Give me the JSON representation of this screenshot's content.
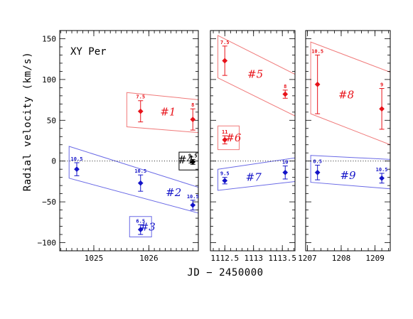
{
  "chart_data": {
    "type": "scatter",
    "title": "XY Per",
    "ylabel": "Radial velocity (km/s)",
    "xlabel": "JD − 2450000",
    "ylim": [
      -110,
      160
    ],
    "y_ticks": [
      -100,
      -50,
      0,
      50,
      100,
      150
    ],
    "zero_line": true,
    "colors": {
      "red": "#e8131a",
      "blue": "#1414c8",
      "black": "#000000",
      "red_box": "#f07a7a",
      "blue_box": "#6a6ae6"
    },
    "panels": [
      {
        "xlim": [
          1024.38,
          1026.9
        ],
        "x_ticks": [
          {
            "v": 1025,
            "label": "1025"
          },
          {
            "v": 1026,
            "label": "1026"
          }
        ],
        "x_minor_step": 0.1
      },
      {
        "xlim": [
          1112.25,
          1113.72
        ],
        "x_ticks": [
          {
            "v": 1112.5,
            "label": "1112.5"
          },
          {
            "v": 1113,
            "label": "1113"
          },
          {
            "v": 1113.5,
            "label": "1113.5"
          }
        ],
        "x_minor_step": 0.1
      },
      {
        "xlim": [
          1206.95,
          1209.45
        ],
        "x_ticks": [
          {
            "v": 1207,
            "label": "1207"
          },
          {
            "v": 1208,
            "label": "1208"
          },
          {
            "v": 1209,
            "label": "1209"
          }
        ],
        "x_minor_step": 0.2
      }
    ],
    "points": [
      {
        "panel": 0,
        "x": 1024.69,
        "y": -10,
        "err": 8,
        "snr": "10.5",
        "color": "blue"
      },
      {
        "panel": 0,
        "x": 1025.85,
        "y": -27,
        "err": 10,
        "snr": "10.5",
        "color": "blue"
      },
      {
        "panel": 0,
        "x": 1026.8,
        "y": -54,
        "err": 6,
        "snr": "10.5",
        "color": "blue"
      },
      {
        "panel": 0,
        "x": 1025.85,
        "y": -84,
        "err": 6,
        "snr": "6.5",
        "color": "blue"
      },
      {
        "panel": 0,
        "x": 1025.85,
        "y": 61,
        "err": 13,
        "snr": "7.5",
        "color": "red"
      },
      {
        "panel": 0,
        "x": 1026.8,
        "y": 51,
        "err": 13,
        "snr": "8",
        "color": "red"
      },
      {
        "panel": 0,
        "x": 1026.8,
        "y": -1,
        "err": 3,
        "snr": "9.5",
        "color": "black"
      },
      {
        "panel": 1,
        "x": 1112.5,
        "y": 123,
        "err": 18,
        "snr": "7.5",
        "color": "red"
      },
      {
        "panel": 1,
        "x": 1113.55,
        "y": 82,
        "err": 5,
        "snr": "8",
        "color": "red"
      },
      {
        "panel": 1,
        "x": 1112.5,
        "y": 26,
        "err": 5,
        "snr": "11",
        "color": "red"
      },
      {
        "panel": 1,
        "x": 1112.5,
        "y": -24,
        "err": 4,
        "snr": "9.5",
        "color": "blue"
      },
      {
        "panel": 1,
        "x": 1113.55,
        "y": -14,
        "err": 8,
        "snr": "10",
        "color": "blue"
      },
      {
        "panel": 2,
        "x": 1207.3,
        "y": 94,
        "err": 36,
        "snr": "10.5",
        "color": "red"
      },
      {
        "panel": 2,
        "x": 1209.2,
        "y": 64,
        "err": 25,
        "snr": "9",
        "color": "red"
      },
      {
        "panel": 2,
        "x": 1207.3,
        "y": -14,
        "err": 9,
        "snr": "8.5",
        "color": "blue"
      },
      {
        "panel": 2,
        "x": 1209.2,
        "y": -21,
        "err": 6,
        "snr": "10.5",
        "color": "blue"
      }
    ],
    "groups": [
      {
        "name": "#1",
        "panel": 0,
        "color": "red",
        "poly": [
          [
            1025.6,
            84
          ],
          [
            1027.08,
            74
          ],
          [
            1027.08,
            34
          ],
          [
            1025.6,
            42
          ]
        ],
        "label_at": [
          1026.35,
          56
        ]
      },
      {
        "name": "#2",
        "panel": 0,
        "color": "blue",
        "poly": [
          [
            1024.55,
            18
          ],
          [
            1027.08,
            -36
          ],
          [
            1027.08,
            -67
          ],
          [
            1024.55,
            -21
          ]
        ],
        "label_at": [
          1026.45,
          -43
        ]
      },
      {
        "name": "#3",
        "panel": 0,
        "color": "blue",
        "poly": [
          [
            1025.65,
            -68
          ],
          [
            1026.05,
            -68
          ],
          [
            1026.05,
            -93
          ],
          [
            1025.65,
            -93
          ]
        ],
        "label_at": [
          1025.98,
          -85
        ]
      },
      {
        "name": "#4",
        "panel": 0,
        "color": "black",
        "poly": [
          [
            1026.55,
            11
          ],
          [
            1026.95,
            11
          ],
          [
            1026.95,
            -11
          ],
          [
            1026.55,
            -11
          ]
        ],
        "label_at": [
          1026.67,
          -3
        ]
      },
      {
        "name": "#5",
        "panel": 1,
        "color": "red",
        "poly": [
          [
            1112.38,
            154
          ],
          [
            1113.73,
            106
          ],
          [
            1113.73,
            55
          ],
          [
            1112.38,
            102
          ]
        ],
        "label_at": [
          1113.03,
          102
        ]
      },
      {
        "name": "#6",
        "panel": 1,
        "color": "red",
        "poly": [
          [
            1112.38,
            43
          ],
          [
            1112.75,
            43
          ],
          [
            1112.75,
            14
          ],
          [
            1112.38,
            14
          ]
        ],
        "label_at": [
          1112.65,
          24
        ]
      },
      {
        "name": "#7",
        "panel": 1,
        "color": "blue",
        "poly": [
          [
            1112.38,
            -10
          ],
          [
            1113.73,
            4
          ],
          [
            1113.73,
            -25
          ],
          [
            1112.38,
            -36
          ]
        ],
        "label_at": [
          1113.0,
          -24
        ]
      },
      {
        "name": "#8",
        "panel": 2,
        "color": "red",
        "poly": [
          [
            1207.1,
            146
          ],
          [
            1209.45,
            109
          ],
          [
            1209.45,
            20
          ],
          [
            1207.1,
            58
          ]
        ],
        "label_at": [
          1208.15,
          77
        ]
      },
      {
        "name": "#9",
        "panel": 2,
        "color": "blue",
        "poly": [
          [
            1207.1,
            7
          ],
          [
            1209.45,
            2
          ],
          [
            1209.45,
            -34
          ],
          [
            1207.1,
            -26
          ]
        ],
        "label_at": [
          1208.2,
          -22
        ]
      }
    ]
  }
}
